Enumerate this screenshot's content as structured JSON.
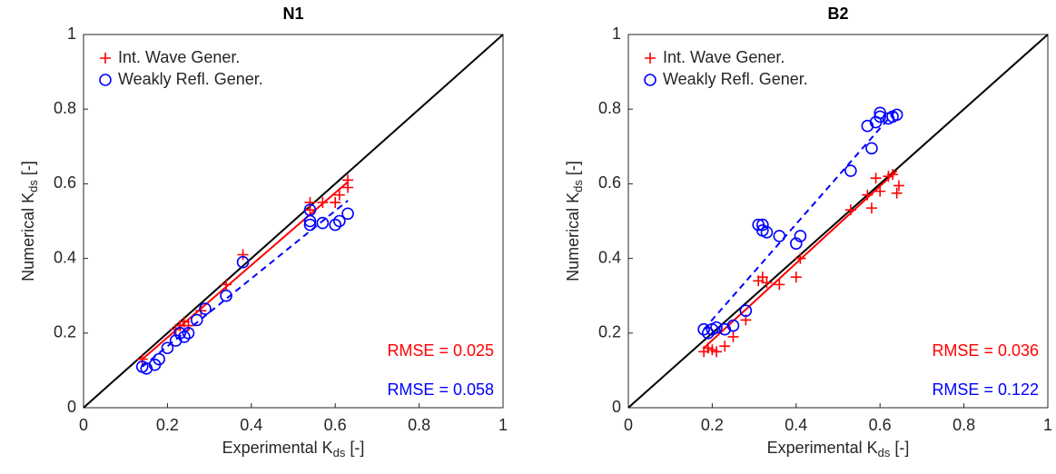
{
  "chart_data": [
    {
      "type": "scatter",
      "title": "N1",
      "xlabel": [
        "Experimental K",
        "ds",
        " [-]"
      ],
      "ylabel": [
        "Numerical K",
        "ds",
        " [-]"
      ],
      "xlim": [
        0,
        1
      ],
      "ylim": [
        0,
        1
      ],
      "xticks": [
        0,
        0.2,
        0.4,
        0.6,
        0.8,
        1
      ],
      "yticks": [
        0,
        0.2,
        0.4,
        0.6,
        0.8,
        1
      ],
      "diagonal": true,
      "legend": "upper left",
      "series": [
        {
          "name": "Int. Wave Gener.",
          "color": "#ff0000",
          "marker": "plus",
          "x": [
            0.14,
            0.22,
            0.23,
            0.24,
            0.25,
            0.28,
            0.34,
            0.38,
            0.54,
            0.54,
            0.57,
            0.6,
            0.61,
            0.63,
            0.63
          ],
          "values": [
            0.13,
            0.21,
            0.22,
            0.23,
            0.22,
            0.26,
            0.33,
            0.41,
            0.55,
            0.53,
            0.55,
            0.55,
            0.57,
            0.59,
            0.61
          ]
        },
        {
          "name": "Weakly Refl. Gener.",
          "color": "#0000ff",
          "marker": "circle",
          "x": [
            0.14,
            0.15,
            0.17,
            0.18,
            0.2,
            0.22,
            0.23,
            0.24,
            0.25,
            0.27,
            0.29,
            0.34,
            0.38,
            0.54,
            0.54,
            0.54,
            0.57,
            0.6,
            0.61,
            0.63
          ],
          "values": [
            0.11,
            0.105,
            0.115,
            0.13,
            0.16,
            0.18,
            0.2,
            0.19,
            0.2,
            0.235,
            0.265,
            0.3,
            0.39,
            0.53,
            0.49,
            0.5,
            0.495,
            0.49,
            0.5,
            0.52
          ]
        }
      ],
      "fits": [
        {
          "color": "#ff0000",
          "dashed": false,
          "x": [
            0.14,
            0.63
          ],
          "values": [
            0.13,
            0.605
          ]
        },
        {
          "color": "#0000ff",
          "dashed": true,
          "x": [
            0.14,
            0.63
          ],
          "values": [
            0.11,
            0.555
          ]
        }
      ],
      "annotations": [
        {
          "text": "RMSE = 0.025",
          "color": "#ff0000"
        },
        {
          "text": "RMSE = 0.058",
          "color": "#0000ff"
        }
      ]
    },
    {
      "type": "scatter",
      "title": "B2",
      "xlabel": [
        "Experimental K",
        "ds",
        " [-]"
      ],
      "ylabel": [
        "Numerical K",
        "ds",
        " [-]"
      ],
      "xlim": [
        0,
        1
      ],
      "ylim": [
        0,
        1
      ],
      "xticks": [
        0,
        0.2,
        0.4,
        0.6,
        0.8,
        1
      ],
      "yticks": [
        0,
        0.2,
        0.4,
        0.6,
        0.8,
        1
      ],
      "diagonal": true,
      "legend": "upper left",
      "series": [
        {
          "name": "Int. Wave Gener.",
          "color": "#ff0000",
          "marker": "plus",
          "x": [
            0.18,
            0.19,
            0.2,
            0.21,
            0.23,
            0.25,
            0.28,
            0.31,
            0.32,
            0.33,
            0.36,
            0.4,
            0.41,
            0.53,
            0.57,
            0.58,
            0.59,
            0.6,
            0.62,
            0.63,
            0.64,
            0.645
          ],
          "values": [
            0.15,
            0.16,
            0.155,
            0.15,
            0.165,
            0.19,
            0.235,
            0.34,
            0.35,
            0.335,
            0.33,
            0.35,
            0.4,
            0.53,
            0.57,
            0.535,
            0.615,
            0.58,
            0.62,
            0.625,
            0.575,
            0.595
          ]
        },
        {
          "name": "Weakly Refl. Gener.",
          "color": "#0000ff",
          "marker": "circle",
          "x": [
            0.18,
            0.19,
            0.2,
            0.21,
            0.23,
            0.25,
            0.28,
            0.31,
            0.32,
            0.32,
            0.33,
            0.36,
            0.4,
            0.41,
            0.53,
            0.57,
            0.58,
            0.59,
            0.6,
            0.6,
            0.62,
            0.63,
            0.64
          ],
          "values": [
            0.21,
            0.2,
            0.21,
            0.215,
            0.21,
            0.22,
            0.26,
            0.49,
            0.49,
            0.475,
            0.47,
            0.46,
            0.44,
            0.46,
            0.635,
            0.755,
            0.695,
            0.765,
            0.79,
            0.78,
            0.775,
            0.78,
            0.785
          ]
        }
      ],
      "fits": [
        {
          "color": "#ff0000",
          "dashed": false,
          "x": [
            0.18,
            0.64
          ],
          "values": [
            0.16,
            0.635
          ]
        },
        {
          "color": "#0000ff",
          "dashed": true,
          "x": [
            0.18,
            0.64
          ],
          "values": [
            0.21,
            0.8
          ]
        }
      ],
      "annotations": [
        {
          "text": "RMSE = 0.036",
          "color": "#ff0000"
        },
        {
          "text": "RMSE = 0.122",
          "color": "#0000ff"
        }
      ]
    }
  ]
}
